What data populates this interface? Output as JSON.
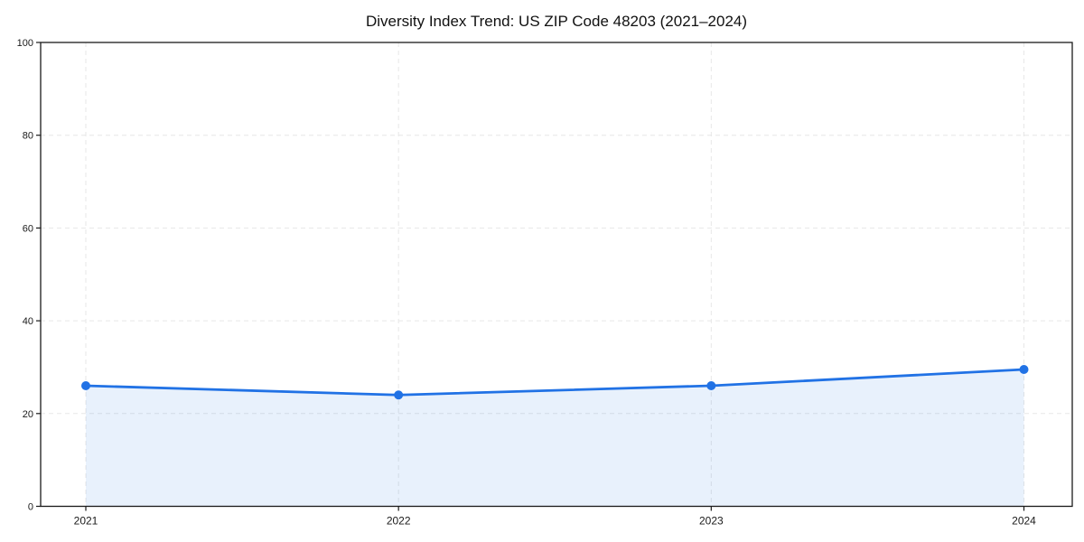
{
  "chart_data": {
    "type": "area",
    "title": "Diversity Index Trend: US ZIP Code 48203 (2021–2024)",
    "categories": [
      "2021",
      "2022",
      "2023",
      "2024"
    ],
    "series": [
      {
        "name": "Diversity Index",
        "values": [
          26,
          24,
          26,
          29.5
        ]
      }
    ],
    "xlabel": "",
    "ylabel": "",
    "ylim": [
      0,
      100
    ],
    "yticks": [
      0,
      20,
      40,
      60,
      80,
      100
    ],
    "grid": "dashed-both-axes",
    "legend_position": "none",
    "colors": {
      "line": "#2172e5",
      "marker": "#2172e5",
      "area_fill": "rgba(33,114,229,0.10)",
      "grid": "#e7e7e7",
      "axis_frame": "#1a1a1a",
      "background": "#ffffff",
      "title_text": "#111111",
      "tick_text": "#1a1a1a"
    }
  }
}
